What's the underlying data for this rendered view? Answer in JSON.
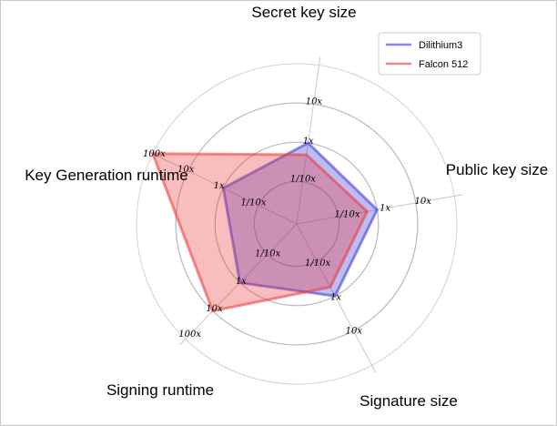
{
  "chart_data": {
    "type": "radar",
    "log_scale": true,
    "grid": true,
    "legend_position": "top-right",
    "axes": [
      "Secret key size",
      "Public key size",
      "Signature size",
      "Signing runtime",
      "Key Generation runtime"
    ],
    "rings": [
      {
        "value": 0.1,
        "label": "1/10x"
      },
      {
        "value": 1,
        "label": "1x"
      },
      {
        "value": 10,
        "label": "10x"
      },
      {
        "value": 100,
        "label": "100x"
      }
    ],
    "series": [
      {
        "name": "Dilithium3",
        "values": [
          1,
          1,
          1,
          1,
          1
        ],
        "color": "#3333dd"
      },
      {
        "name": "Falcon 512",
        "values": [
          0.5,
          0.55,
          0.55,
          10,
          100
        ],
        "color": "#ee3333"
      }
    ],
    "tick_labels": [
      {
        "text": "10x",
        "axis": 0,
        "r": 0.77
      },
      {
        "text": "1x",
        "axis": 0,
        "r": 0.52
      },
      {
        "text": "1/10x",
        "axis": 0,
        "r": 0.28
      },
      {
        "text": "10x",
        "axis": 1,
        "r": 0.8
      },
      {
        "text": "1x",
        "axis": 1,
        "r": 0.56
      },
      {
        "text": "1/10x",
        "axis": 1,
        "r": 0.32
      },
      {
        "text": "10x",
        "axis": 2,
        "r": 0.76
      },
      {
        "text": "1x",
        "axis": 2,
        "r": 0.52
      },
      {
        "text": "1/10x",
        "axis": 2,
        "r": 0.28
      },
      {
        "text": "100x",
        "axis": 3,
        "r": 0.96
      },
      {
        "text": "10x",
        "axis": 3,
        "r": 0.74
      },
      {
        "text": "1x",
        "axis": 3,
        "r": 0.5
      },
      {
        "text": "1/10x",
        "axis": 3,
        "r": 0.26
      },
      {
        "text": "100x",
        "axis": 4,
        "r": 0.99
      },
      {
        "text": "10x",
        "axis": 4,
        "r": 0.77
      },
      {
        "text": "1x",
        "axis": 4,
        "r": 0.54
      },
      {
        "text": "1/10x",
        "axis": 4,
        "r": 0.3
      }
    ]
  }
}
